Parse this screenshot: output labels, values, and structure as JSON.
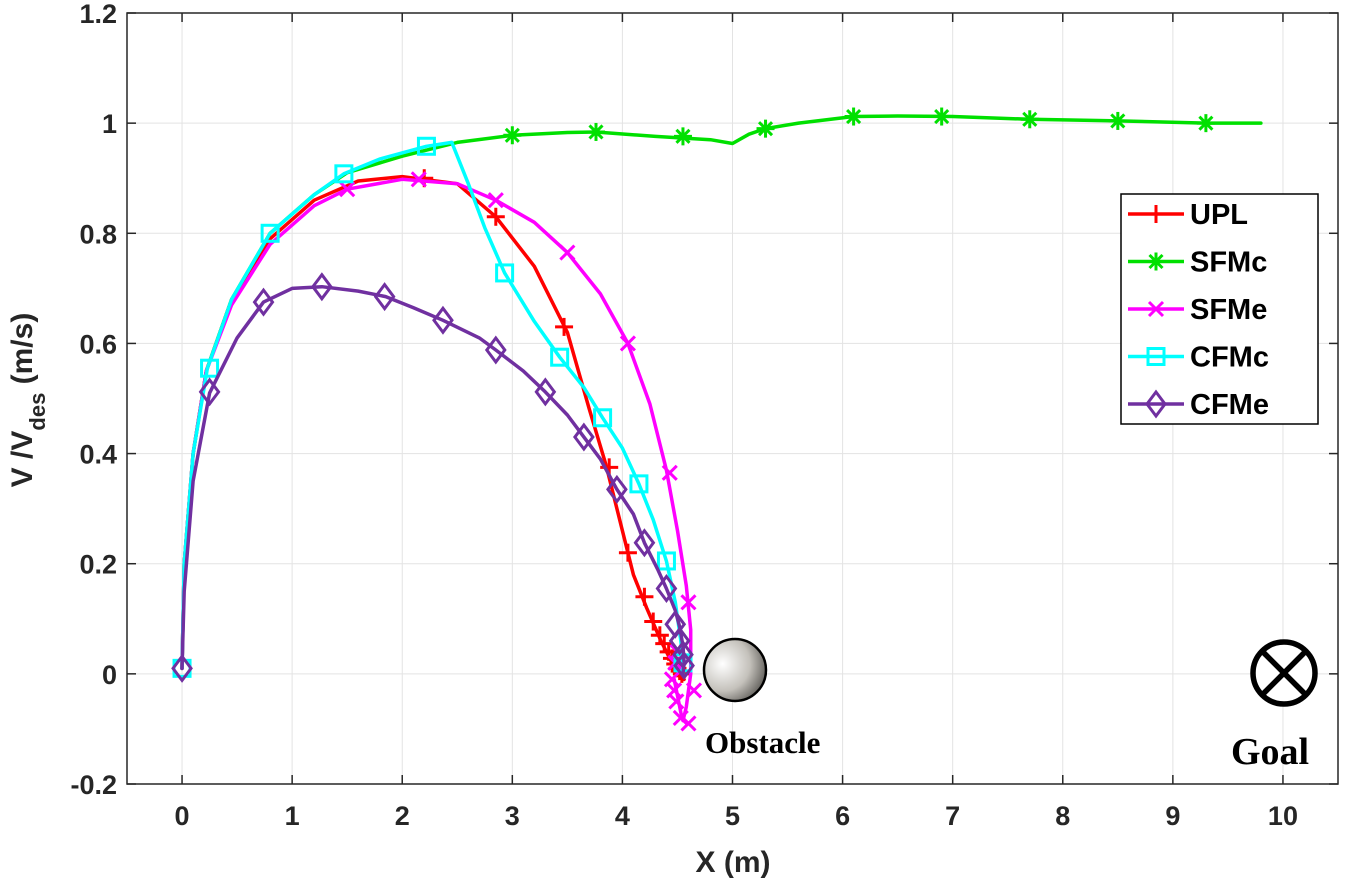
{
  "chart_data": {
    "type": "line",
    "xlabel": "X (m)",
    "ylabel": {
      "v": "V",
      "sep": " /V",
      "sub": "des",
      "unit": " (m/s)"
    },
    "xlim": [
      -0.5,
      10.5
    ],
    "ylim": [
      -0.2,
      1.2
    ],
    "xticks": [
      0,
      1,
      2,
      3,
      4,
      5,
      6,
      7,
      8,
      9,
      10
    ],
    "yticks": [
      -0.2,
      0,
      0.2,
      0.4,
      0.6,
      0.8,
      1,
      1.2
    ],
    "ytick_labels": [
      "-0.2",
      "0",
      "0.2",
      "0.4",
      "0.6",
      "0.8",
      "1",
      "1.2"
    ],
    "grid": true,
    "legend_position": "right",
    "series": [
      {
        "name": "UPL",
        "color": "#ff0000",
        "marker": "plus",
        "line": [
          [
            0,
            0.01
          ],
          [
            0.02,
            0.2
          ],
          [
            0.1,
            0.4
          ],
          [
            0.22,
            0.55
          ],
          [
            0.45,
            0.68
          ],
          [
            0.8,
            0.79
          ],
          [
            1.2,
            0.86
          ],
          [
            1.6,
            0.895
          ],
          [
            2.0,
            0.903
          ],
          [
            2.5,
            0.89
          ],
          [
            2.85,
            0.83
          ],
          [
            3.2,
            0.74
          ],
          [
            3.5,
            0.62
          ],
          [
            3.7,
            0.48
          ],
          [
            3.85,
            0.38
          ],
          [
            4.0,
            0.26
          ],
          [
            4.1,
            0.18
          ],
          [
            4.22,
            0.12
          ],
          [
            4.35,
            0.06
          ],
          [
            4.45,
            0.02
          ],
          [
            4.52,
            0.0
          ],
          [
            4.56,
            -0.01
          ]
        ],
        "markers": [
          [
            2.2,
            0.9
          ],
          [
            2.85,
            0.83
          ],
          [
            3.47,
            0.63
          ],
          [
            3.88,
            0.375
          ],
          [
            4.05,
            0.22
          ],
          [
            4.2,
            0.14
          ],
          [
            4.28,
            0.095
          ],
          [
            4.34,
            0.07
          ],
          [
            4.38,
            0.055
          ],
          [
            4.42,
            0.04
          ],
          [
            4.45,
            0.028
          ],
          [
            4.48,
            0.018
          ],
          [
            4.5,
            0.01
          ],
          [
            4.52,
            0.005
          ],
          [
            4.54,
            0.0
          ]
        ]
      },
      {
        "name": "SFMc",
        "color": "#00e000",
        "marker": "asterisk",
        "line": [
          [
            0,
            0.01
          ],
          [
            0.02,
            0.2
          ],
          [
            0.1,
            0.4
          ],
          [
            0.22,
            0.55
          ],
          [
            0.45,
            0.68
          ],
          [
            0.8,
            0.8
          ],
          [
            1.2,
            0.87
          ],
          [
            1.5,
            0.91
          ],
          [
            2.0,
            0.94
          ],
          [
            2.5,
            0.965
          ],
          [
            3.0,
            0.978
          ],
          [
            3.5,
            0.983
          ],
          [
            3.76,
            0.984
          ],
          [
            4.3,
            0.976
          ],
          [
            4.8,
            0.97
          ],
          [
            5.0,
            0.963
          ],
          [
            5.15,
            0.98
          ],
          [
            5.3,
            0.99
          ],
          [
            5.6,
            1.0
          ],
          [
            6.1,
            1.012
          ],
          [
            6.5,
            1.013
          ],
          [
            7.0,
            1.012
          ],
          [
            7.7,
            1.007
          ],
          [
            8.5,
            1.004
          ],
          [
            9.3,
            1.0
          ],
          [
            9.8,
            1.0
          ]
        ],
        "markers": [
          [
            3.0,
            0.978
          ],
          [
            3.76,
            0.984
          ],
          [
            4.55,
            0.976
          ],
          [
            5.3,
            0.99
          ],
          [
            6.1,
            1.012
          ],
          [
            6.9,
            1.012
          ],
          [
            7.7,
            1.007
          ],
          [
            8.5,
            1.004
          ],
          [
            9.3,
            1.0
          ]
        ]
      },
      {
        "name": "SFMe",
        "color": "#ff00ff",
        "marker": "x",
        "line": [
          [
            0,
            0.01
          ],
          [
            0.02,
            0.2
          ],
          [
            0.1,
            0.4
          ],
          [
            0.22,
            0.55
          ],
          [
            0.45,
            0.67
          ],
          [
            0.8,
            0.78
          ],
          [
            1.2,
            0.85
          ],
          [
            1.5,
            0.88
          ],
          [
            2.0,
            0.898
          ],
          [
            2.5,
            0.89
          ],
          [
            2.85,
            0.86
          ],
          [
            3.2,
            0.82
          ],
          [
            3.5,
            0.765
          ],
          [
            3.8,
            0.69
          ],
          [
            4.05,
            0.6
          ],
          [
            4.25,
            0.49
          ],
          [
            4.4,
            0.37
          ],
          [
            4.5,
            0.26
          ],
          [
            4.58,
            0.16
          ],
          [
            4.62,
            0.08
          ],
          [
            4.62,
            0.0
          ],
          [
            4.58,
            -0.06
          ],
          [
            4.55,
            -0.085
          ],
          [
            4.53,
            -0.07
          ],
          [
            4.5,
            -0.04
          ],
          [
            4.47,
            -0.01
          ]
        ],
        "markers": [
          [
            1.5,
            0.88
          ],
          [
            2.15,
            0.898
          ],
          [
            2.85,
            0.86
          ],
          [
            3.5,
            0.765
          ],
          [
            4.05,
            0.6
          ],
          [
            4.43,
            0.365
          ],
          [
            4.6,
            0.13
          ],
          [
            4.65,
            -0.03
          ],
          [
            4.6,
            -0.09
          ],
          [
            4.53,
            -0.08
          ],
          [
            4.49,
            -0.05
          ],
          [
            4.47,
            -0.03
          ],
          [
            4.45,
            -0.01
          ],
          [
            4.48,
            0.02
          ],
          [
            4.5,
            0.04
          ]
        ]
      },
      {
        "name": "CFMc",
        "color": "#00ffff",
        "marker": "square",
        "line": [
          [
            0,
            0.01
          ],
          [
            0.02,
            0.2
          ],
          [
            0.1,
            0.4
          ],
          [
            0.23,
            0.555
          ],
          [
            0.45,
            0.68
          ],
          [
            0.8,
            0.8
          ],
          [
            1.2,
            0.87
          ],
          [
            1.47,
            0.908
          ],
          [
            1.8,
            0.935
          ],
          [
            2.22,
            0.958
          ],
          [
            2.45,
            0.965
          ],
          [
            2.6,
            0.89
          ],
          [
            2.75,
            0.81
          ],
          [
            2.93,
            0.728
          ],
          [
            3.2,
            0.64
          ],
          [
            3.43,
            0.575
          ],
          [
            3.65,
            0.52
          ],
          [
            3.82,
            0.465
          ],
          [
            4.0,
            0.41
          ],
          [
            4.15,
            0.345
          ],
          [
            4.28,
            0.28
          ],
          [
            4.4,
            0.205
          ],
          [
            4.48,
            0.13
          ],
          [
            4.53,
            0.06
          ],
          [
            4.55,
            0.02
          ],
          [
            4.55,
            0.0
          ]
        ],
        "markers": [
          [
            0.0,
            0.01
          ],
          [
            0.25,
            0.555
          ],
          [
            0.8,
            0.8
          ],
          [
            1.47,
            0.908
          ],
          [
            2.22,
            0.958
          ],
          [
            2.93,
            0.728
          ],
          [
            3.43,
            0.575
          ],
          [
            3.82,
            0.465
          ],
          [
            4.15,
            0.345
          ],
          [
            4.4,
            0.205
          ],
          [
            4.55,
            0.02
          ]
        ]
      },
      {
        "name": "CFMe",
        "color": "#7030a0",
        "marker": "diamond",
        "line": [
          [
            0,
            0.01
          ],
          [
            0.02,
            0.15
          ],
          [
            0.1,
            0.35
          ],
          [
            0.25,
            0.51
          ],
          [
            0.5,
            0.61
          ],
          [
            0.74,
            0.675
          ],
          [
            1.0,
            0.7
          ],
          [
            1.27,
            0.703
          ],
          [
            1.6,
            0.695
          ],
          [
            1.85,
            0.685
          ],
          [
            2.1,
            0.665
          ],
          [
            2.37,
            0.642
          ],
          [
            2.7,
            0.61
          ],
          [
            2.85,
            0.588
          ],
          [
            3.1,
            0.55
          ],
          [
            3.3,
            0.512
          ],
          [
            3.5,
            0.47
          ],
          [
            3.65,
            0.43
          ],
          [
            3.8,
            0.39
          ],
          [
            3.95,
            0.335
          ],
          [
            4.1,
            0.29
          ],
          [
            4.2,
            0.238
          ],
          [
            4.32,
            0.19
          ],
          [
            4.4,
            0.155
          ],
          [
            4.48,
            0.115
          ],
          [
            4.52,
            0.085
          ],
          [
            4.55,
            0.05
          ],
          [
            4.56,
            0.02
          ],
          [
            4.55,
            0.0
          ]
        ],
        "markers": [
          [
            0.0,
            0.01
          ],
          [
            0.25,
            0.512
          ],
          [
            0.74,
            0.675
          ],
          [
            1.27,
            0.703
          ],
          [
            1.84,
            0.685
          ],
          [
            2.37,
            0.642
          ],
          [
            2.85,
            0.588
          ],
          [
            3.3,
            0.512
          ],
          [
            3.65,
            0.43
          ],
          [
            3.95,
            0.335
          ],
          [
            4.2,
            0.238
          ],
          [
            4.4,
            0.155
          ],
          [
            4.48,
            0.09
          ],
          [
            4.52,
            0.06
          ],
          [
            4.55,
            0.035
          ],
          [
            4.56,
            0.015
          ]
        ]
      }
    ],
    "annotations": [
      {
        "label": "Obstacle",
        "x": 5.0,
        "y": 0.0
      },
      {
        "label": "Goal",
        "x": 10.0,
        "y": 0.0
      }
    ]
  }
}
